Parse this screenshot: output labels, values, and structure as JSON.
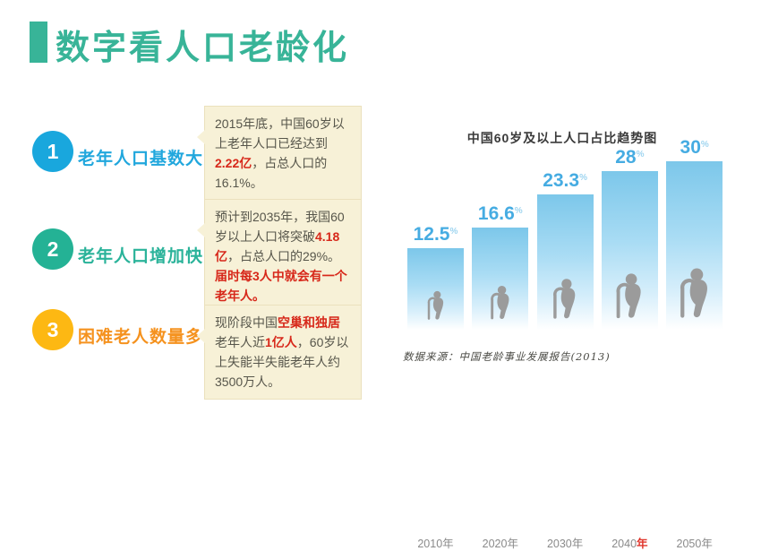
{
  "header": {
    "title": "数字看人口老龄化",
    "accent_color": "#38B498"
  },
  "items": [
    {
      "number": "1",
      "bubble_color": "#19A7DD",
      "label": "老年人口基数大",
      "label_color": "#21A7DD",
      "segments": [
        {
          "text": "2015年底，中国60岁以上老年人口已经达到",
          "red": false
        },
        {
          "text": "2.22亿",
          "red": true
        },
        {
          "text": "，占总人口的16.1%。",
          "red": false
        }
      ]
    },
    {
      "number": "2",
      "bubble_color": "#24B295",
      "label": "老年人口增加快",
      "label_color": "#2BB39A",
      "segments": [
        {
          "text": "预计到2035年，我国60岁以上人口将突破",
          "red": false
        },
        {
          "text": "4.18亿",
          "red": true
        },
        {
          "text": "，占总人口的29%。",
          "red": false
        },
        {
          "text": "届时每3人中就会有一个老年人。",
          "red": true
        }
      ]
    },
    {
      "number": "3",
      "bubble_color": "#FDB813",
      "label": "困难老人数量多",
      "label_color": "#F5921E",
      "segments": [
        {
          "text": "现阶段中国",
          "red": false
        },
        {
          "text": "空巢和独居",
          "red": true
        },
        {
          "text": "老年人近",
          "red": false
        },
        {
          "text": "1亿人",
          "red": true
        },
        {
          "text": "，60岁以上失能半失能老年人约3500万人。",
          "red": false
        }
      ]
    }
  ],
  "chart_data": {
    "type": "bar",
    "title": "中国60岁及以上人口占比趋势图",
    "categories": [
      "2010年",
      "2020年",
      "2030年",
      "2040年",
      "2050年"
    ],
    "values": [
      12.5,
      16.6,
      23.3,
      28,
      30
    ],
    "unit": "%",
    "ylim": [
      0,
      30
    ],
    "grid": false,
    "legend": "none",
    "bar_color_top": "#7CC7EA",
    "value_label_color": "#46ACE2",
    "highlight": {
      "index": 3,
      "prefix": "2040",
      "red_part": "年"
    },
    "source": "数据来源：中国老龄事业发展报告(2013)"
  },
  "colors": {
    "note_box_bg": "#F7F1D7",
    "note_red": "#D7281A",
    "person_gray": "#9B9B9B",
    "year_red": "#E0352B"
  }
}
